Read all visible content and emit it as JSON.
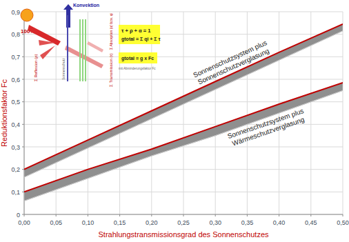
{
  "chart_data": {
    "type": "line",
    "x_label": "Strahlungstransmissionsgrad des Sonnenschutzes",
    "y_label": "Reduktionsfaktor Fc",
    "xlim": [
      0,
      0.5
    ],
    "ylim": [
      0,
      0.9
    ],
    "xticks": [
      {
        "value": 0,
        "label": "0,00"
      },
      {
        "value": 0.05,
        "label": "0,05"
      },
      {
        "value": 0.1,
        "label": "0,10"
      },
      {
        "value": 0.15,
        "label": "0,15"
      },
      {
        "value": 0.2,
        "label": "0,20"
      },
      {
        "value": 0.25,
        "label": "0,25"
      },
      {
        "value": 0.3,
        "label": "0,30"
      },
      {
        "value": 0.35,
        "label": "0,35"
      },
      {
        "value": 0.4,
        "label": "0,40"
      },
      {
        "value": 0.45,
        "label": "0,45"
      },
      {
        "value": 0.5,
        "label": "0,50"
      }
    ],
    "yticks": [
      0,
      {
        "value": 0.1,
        "label": "0,1"
      },
      {
        "value": 0.2,
        "label": "0,2"
      },
      {
        "value": 0.3,
        "label": "0,3"
      },
      {
        "value": 0.4,
        "label": "0,4"
      },
      {
        "value": 0.5,
        "label": "0,5"
      },
      {
        "value": 0.6,
        "label": "0,6"
      },
      {
        "value": 0.7,
        "label": "0,7"
      },
      {
        "value": 0.8,
        "label": "0,8"
      },
      {
        "value": 0.9,
        "label": "0,9"
      }
    ],
    "grid": true,
    "series": [
      {
        "name": "Sonnenschutzsystem plus Sonnenschutzverglasung",
        "color": "#c00000",
        "x": [
          0,
          0.1,
          0.2,
          0.3,
          0.4,
          0.5
        ],
        "values": [
          0.2,
          0.33,
          0.46,
          0.59,
          0.72,
          0.845
        ],
        "band_lower": [
          0.165,
          0.295,
          0.425,
          0.555,
          0.685,
          0.815
        ]
      },
      {
        "name": "Sonnenschutzsystem plus Wärmeschutzverglasung",
        "color": "#c00000",
        "x": [
          0,
          0.1,
          0.2,
          0.3,
          0.4,
          0.5
        ],
        "values": [
          0.1,
          0.2,
          0.29,
          0.39,
          0.49,
          0.585
        ],
        "band_lower": [
          0.06,
          0.16,
          0.26,
          0.35,
          0.45,
          0.55
        ]
      }
    ]
  },
  "inset": {
    "sun": "100%",
    "convection": "Konvektion",
    "reflection": "Σ Reflexion (ρ)",
    "shade": "Sonnenschutz",
    "transmission": "Σ Transmission (τ)",
    "absorption": "Σ Absorption (α) bzw. qi",
    "formula1": "τ + ρ + α = 1",
    "formula2": "gtotal = Σ qi + Σ τ",
    "formula3": "gtotal = g x Fc",
    "note": "mit Abminderungsfaktor Fc"
  }
}
